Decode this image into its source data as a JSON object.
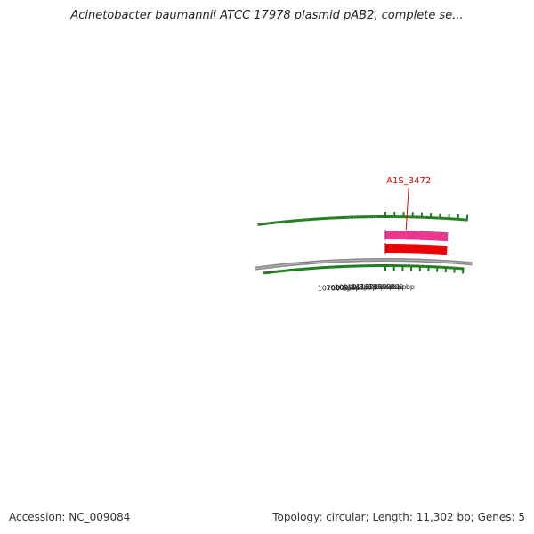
{
  "header": {
    "title": "Acinetobacter baumannii ATCC 17978 plasmid pAB2, complete se..."
  },
  "footer": {
    "accession": "Accession: NC_009084",
    "summary": "Topology: circular; Length: 11,302 bp; Genes: 5"
  },
  "map": {
    "topology": "circular",
    "length_bp": 11302,
    "tick_step_bp": 100,
    "labeled_ticks": [
      {
        "bp": 10700,
        "label": "10700 bp"
      },
      {
        "bp": 10800,
        "label": "10800 bp"
      },
      {
        "bp": 10900,
        "label": "10900 bp"
      },
      {
        "bp": 11000,
        "label": "11000 bp"
      },
      {
        "bp": 11100,
        "label": "11100 bp"
      },
      {
        "bp": 11200,
        "label": "11200 bp"
      },
      {
        "bp": 11300,
        "label": "11300 bp"
      },
      {
        "bp": 100,
        "label": "100 bp"
      },
      {
        "bp": 200,
        "label": "200 bp"
      }
    ],
    "genes": [
      {
        "name": "A1S_3472",
        "start_bp": 0,
        "end_bp": 700,
        "color": "#e8388f",
        "label_color": "#dd0000"
      }
    ],
    "features": [
      {
        "start_bp": 0,
        "end_bp": 700,
        "color": "#ee0000"
      }
    ],
    "colors": {
      "backbone": "#888888",
      "tick": "#1a7a1a",
      "gene_fill": "#e8388f",
      "feature_fill": "#ee0000"
    }
  }
}
